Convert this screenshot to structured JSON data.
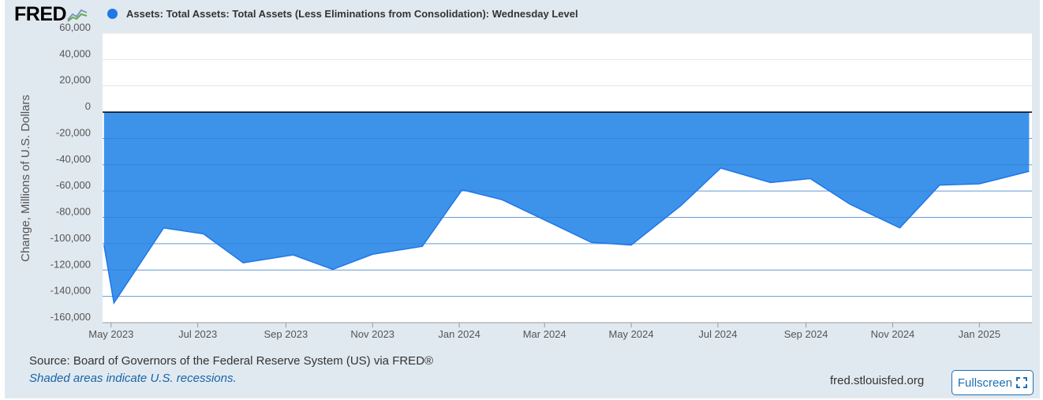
{
  "brand": {
    "logo_text": "FRED"
  },
  "chart_data": {
    "type": "area",
    "title": "Assets: Total Assets: Total Assets (Less Eliminations from Consolidation): Wednesday Level",
    "series": [
      {
        "name": "Assets: Total Assets: Total Assets (Less Eliminations from Consolidation): Wednesday Level",
        "color": "#1f77e8",
        "fill_color": "#3d93ea",
        "x": [
          "2023-04-26",
          "2023-05-03",
          "2023-06-07",
          "2023-07-05",
          "2023-08-02",
          "2023-09-06",
          "2023-10-04",
          "2023-11-01",
          "2023-12-06",
          "2024-01-03",
          "2024-01-31",
          "2024-03-06",
          "2024-04-03",
          "2024-05-01",
          "2024-06-05",
          "2024-07-03",
          "2024-08-07",
          "2024-09-04",
          "2024-10-02",
          "2024-11-06",
          "2024-12-04",
          "2025-01-01",
          "2025-02-05"
        ],
        "values": [
          -101000,
          -145000,
          -88000,
          -92500,
          -114500,
          -108500,
          -119500,
          -108000,
          -102000,
          -59000,
          -66500,
          -84500,
          -99000,
          -101000,
          -71000,
          -42500,
          -53500,
          -50500,
          -70000,
          -88000,
          -55500,
          -54500,
          -45000
        ]
      }
    ],
    "x_ticks": [
      "May 2023",
      "Jul 2023",
      "Sep 2023",
      "Nov 2023",
      "Jan 2024",
      "Mar 2024",
      "May 2024",
      "Jul 2024",
      "Sep 2024",
      "Nov 2024",
      "Jan 2025"
    ],
    "x_tick_dates": [
      "2023-05-01",
      "2023-07-01",
      "2023-09-01",
      "2023-11-01",
      "2024-01-01",
      "2024-03-01",
      "2024-05-01",
      "2024-07-01",
      "2024-09-01",
      "2024-11-01",
      "2025-01-01"
    ],
    "xlim": [
      "2023-04-25",
      "2025-02-07"
    ],
    "y_ticks": [
      "60,000",
      "40,000",
      "20,000",
      "0",
      "-20,000",
      "-40,000",
      "-60,000",
      "-80,000",
      "-100,000",
      "-120,000",
      "-140,000",
      "-160,000"
    ],
    "y_tick_values": [
      60000,
      40000,
      20000,
      0,
      -20000,
      -40000,
      -60000,
      -80000,
      -100000,
      -120000,
      -140000,
      -160000
    ],
    "ylim": [
      -160000,
      60000
    ],
    "ylabel": "Change, Millions of U.S. Dollars",
    "xlabel": "",
    "grid": true
  },
  "footer": {
    "source": "Source: Board of Governors of the Federal Reserve System (US) via FRED®",
    "recession_note": "Shaded areas indicate U.S. recessions.",
    "site": "fred.stlouisfed.org",
    "fullscreen_label": "Fullscreen"
  }
}
